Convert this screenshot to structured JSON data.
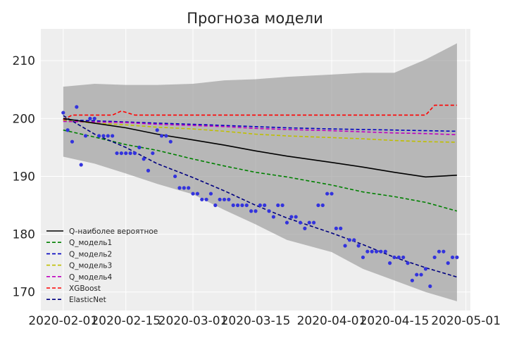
{
  "chart_data": {
    "type": "line",
    "title": "Прогноза модели",
    "xlabel": "",
    "ylabel": "",
    "x_ticks": [
      "2020-02-01",
      "2020-02-15",
      "2020-03-01",
      "2020-03-15",
      "2020-04-01",
      "2020-04-15",
      "2020-05-01"
    ],
    "y_ticks": [
      170,
      180,
      190,
      200,
      210
    ],
    "xlim": [
      "2020-01-27",
      "2020-05-02"
    ],
    "ylim": [
      166.8,
      215.5
    ],
    "grid": true,
    "legend_position": "lower-left",
    "background": "#eeeeee",
    "series": [
      {
        "name": "Q-наиболее вероятное",
        "color": "#000000",
        "style": "solid",
        "x": [
          "2020-02-01",
          "2020-02-08",
          "2020-02-15",
          "2020-02-22",
          "2020-03-01",
          "2020-03-08",
          "2020-03-15",
          "2020-03-22",
          "2020-04-01",
          "2020-04-08",
          "2020-04-15",
          "2020-04-22",
          "2020-04-29"
        ],
        "values": [
          200.0,
          199.2,
          198.4,
          197.3,
          196.3,
          195.4,
          194.4,
          193.5,
          192.4,
          191.6,
          190.7,
          189.9,
          190.2
        ]
      },
      {
        "name": "Q_модель1",
        "color": "#008000",
        "style": "dashed",
        "x": [
          "2020-02-01",
          "2020-02-08",
          "2020-02-15",
          "2020-02-22",
          "2020-03-01",
          "2020-03-08",
          "2020-03-15",
          "2020-03-22",
          "2020-04-01",
          "2020-04-08",
          "2020-04-15",
          "2020-04-22",
          "2020-04-29"
        ],
        "values": [
          198.0,
          196.8,
          195.5,
          194.5,
          193.0,
          191.8,
          190.7,
          189.9,
          188.5,
          187.3,
          186.5,
          185.5,
          184.0
        ]
      },
      {
        "name": "Q_модель2",
        "color": "#0000bf",
        "style": "dashed",
        "x": [
          "2020-02-01",
          "2020-02-08",
          "2020-02-15",
          "2020-02-22",
          "2020-03-01",
          "2020-03-08",
          "2020-03-15",
          "2020-03-22",
          "2020-04-01",
          "2020-04-08",
          "2020-04-15",
          "2020-04-22",
          "2020-04-29"
        ],
        "values": [
          199.8,
          199.6,
          199.4,
          199.2,
          199.0,
          198.8,
          198.6,
          198.4,
          198.2,
          198.1,
          198.0,
          197.9,
          197.8
        ]
      },
      {
        "name": "Q_модель3",
        "color": "#bfbf00",
        "style": "dashed",
        "x": [
          "2020-02-01",
          "2020-02-08",
          "2020-02-15",
          "2020-02-22",
          "2020-03-01",
          "2020-03-08",
          "2020-03-15",
          "2020-03-22",
          "2020-04-01",
          "2020-04-08",
          "2020-04-15",
          "2020-04-22",
          "2020-04-29"
        ],
        "values": [
          199.7,
          199.2,
          198.9,
          198.5,
          198.2,
          197.8,
          197.3,
          197.0,
          196.7,
          196.5,
          196.2,
          196.0,
          195.9
        ]
      },
      {
        "name": "Q_модель4",
        "color": "#bf00bf",
        "style": "dashed",
        "x": [
          "2020-02-01",
          "2020-02-08",
          "2020-02-15",
          "2020-02-22",
          "2020-03-01",
          "2020-03-08",
          "2020-03-15",
          "2020-03-22",
          "2020-04-01",
          "2020-04-08",
          "2020-04-15",
          "2020-04-22",
          "2020-04-29"
        ],
        "values": [
          199.5,
          199.4,
          199.3,
          199.0,
          198.8,
          198.6,
          198.3,
          198.1,
          197.9,
          197.7,
          197.5,
          197.4,
          197.2
        ]
      },
      {
        "name": "XGBoost",
        "color": "#ff0000",
        "style": "dashed",
        "x": [
          "2020-02-01",
          "2020-02-03",
          "2020-02-12",
          "2020-02-14",
          "2020-02-17",
          "2020-02-19",
          "2020-03-01",
          "2020-03-15",
          "2020-04-01",
          "2020-04-15",
          "2020-04-22",
          "2020-04-24",
          "2020-04-29"
        ],
        "values": [
          199.8,
          200.6,
          200.6,
          201.3,
          200.6,
          200.6,
          200.6,
          200.6,
          200.6,
          200.6,
          200.6,
          202.3,
          202.3
        ]
      },
      {
        "name": "ElasticNet",
        "color": "#000080",
        "style": "dashed",
        "x": [
          "2020-02-01",
          "2020-02-08",
          "2020-02-15",
          "2020-02-22",
          "2020-03-01",
          "2020-03-08",
          "2020-03-15",
          "2020-03-22",
          "2020-04-01",
          "2020-04-08",
          "2020-04-15",
          "2020-04-22",
          "2020-04-29"
        ],
        "values": [
          200.5,
          197.3,
          195.0,
          192.2,
          189.8,
          187.5,
          185.0,
          182.8,
          180.2,
          178.2,
          176.0,
          174.2,
          172.6
        ]
      }
    ],
    "observed_points": {
      "color": "#3333dd",
      "x": [
        "2020-02-01",
        "2020-02-02",
        "2020-02-03",
        "2020-02-04",
        "2020-02-05",
        "2020-02-06",
        "2020-02-07",
        "2020-02-08",
        "2020-02-09",
        "2020-02-10",
        "2020-02-11",
        "2020-02-12",
        "2020-02-13",
        "2020-02-14",
        "2020-02-15",
        "2020-02-16",
        "2020-02-17",
        "2020-02-18",
        "2020-02-19",
        "2020-02-20",
        "2020-02-21",
        "2020-02-22",
        "2020-02-23",
        "2020-02-24",
        "2020-02-25",
        "2020-02-26",
        "2020-02-27",
        "2020-02-28",
        "2020-02-29",
        "2020-03-01",
        "2020-03-02",
        "2020-03-03",
        "2020-03-04",
        "2020-03-05",
        "2020-03-06",
        "2020-03-07",
        "2020-03-08",
        "2020-03-09",
        "2020-03-10",
        "2020-03-11",
        "2020-03-12",
        "2020-03-13",
        "2020-03-14",
        "2020-03-15",
        "2020-03-16",
        "2020-03-17",
        "2020-03-18",
        "2020-03-19",
        "2020-03-20",
        "2020-03-21",
        "2020-03-22",
        "2020-03-23",
        "2020-03-24",
        "2020-03-25",
        "2020-03-26",
        "2020-03-27",
        "2020-03-28",
        "2020-03-29",
        "2020-03-30",
        "2020-03-31",
        "2020-04-01",
        "2020-04-02",
        "2020-04-03",
        "2020-04-04",
        "2020-04-05",
        "2020-04-06",
        "2020-04-07",
        "2020-04-08",
        "2020-04-09",
        "2020-04-10",
        "2020-04-11",
        "2020-04-12",
        "2020-04-13",
        "2020-04-14",
        "2020-04-15",
        "2020-04-16",
        "2020-04-17",
        "2020-04-18",
        "2020-04-19",
        "2020-04-20",
        "2020-04-21",
        "2020-04-22",
        "2020-04-23",
        "2020-04-24",
        "2020-04-25",
        "2020-04-26",
        "2020-04-27",
        "2020-04-28",
        "2020-04-29"
      ],
      "values": [
        201,
        198,
        196,
        202,
        192,
        197,
        200,
        200,
        197,
        197,
        197,
        197,
        194,
        194,
        194,
        194,
        194,
        195,
        193,
        191,
        194,
        198,
        197,
        197,
        196,
        190,
        188,
        188,
        188,
        187,
        187,
        186,
        186,
        187,
        185,
        186,
        186,
        186,
        185,
        185,
        185,
        185,
        184,
        184,
        185,
        185,
        184,
        183,
        185,
        185,
        182,
        183,
        183,
        182,
        181,
        182,
        182,
        185,
        185,
        187,
        187,
        181,
        181,
        178,
        179,
        179,
        178,
        176,
        177,
        177,
        177,
        177,
        177,
        175,
        176,
        176,
        176,
        175,
        172,
        173,
        173,
        174,
        171,
        176,
        177,
        177,
        175,
        176,
        176
      ]
    },
    "band": {
      "color": "#999999",
      "x": [
        "2020-02-01",
        "2020-02-08",
        "2020-02-15",
        "2020-02-22",
        "2020-03-01",
        "2020-03-08",
        "2020-03-15",
        "2020-03-22",
        "2020-04-01",
        "2020-04-08",
        "2020-04-15",
        "2020-04-22",
        "2020-04-29"
      ],
      "upper": [
        205.5,
        206.0,
        205.8,
        205.8,
        206.0,
        206.6,
        206.8,
        207.2,
        207.6,
        207.9,
        207.9,
        210.2,
        213.0
      ],
      "lower": [
        193.4,
        192.2,
        190.5,
        188.7,
        186.9,
        184.2,
        181.7,
        179.0,
        176.9,
        174.0,
        172.0,
        170.0,
        168.4
      ]
    }
  }
}
